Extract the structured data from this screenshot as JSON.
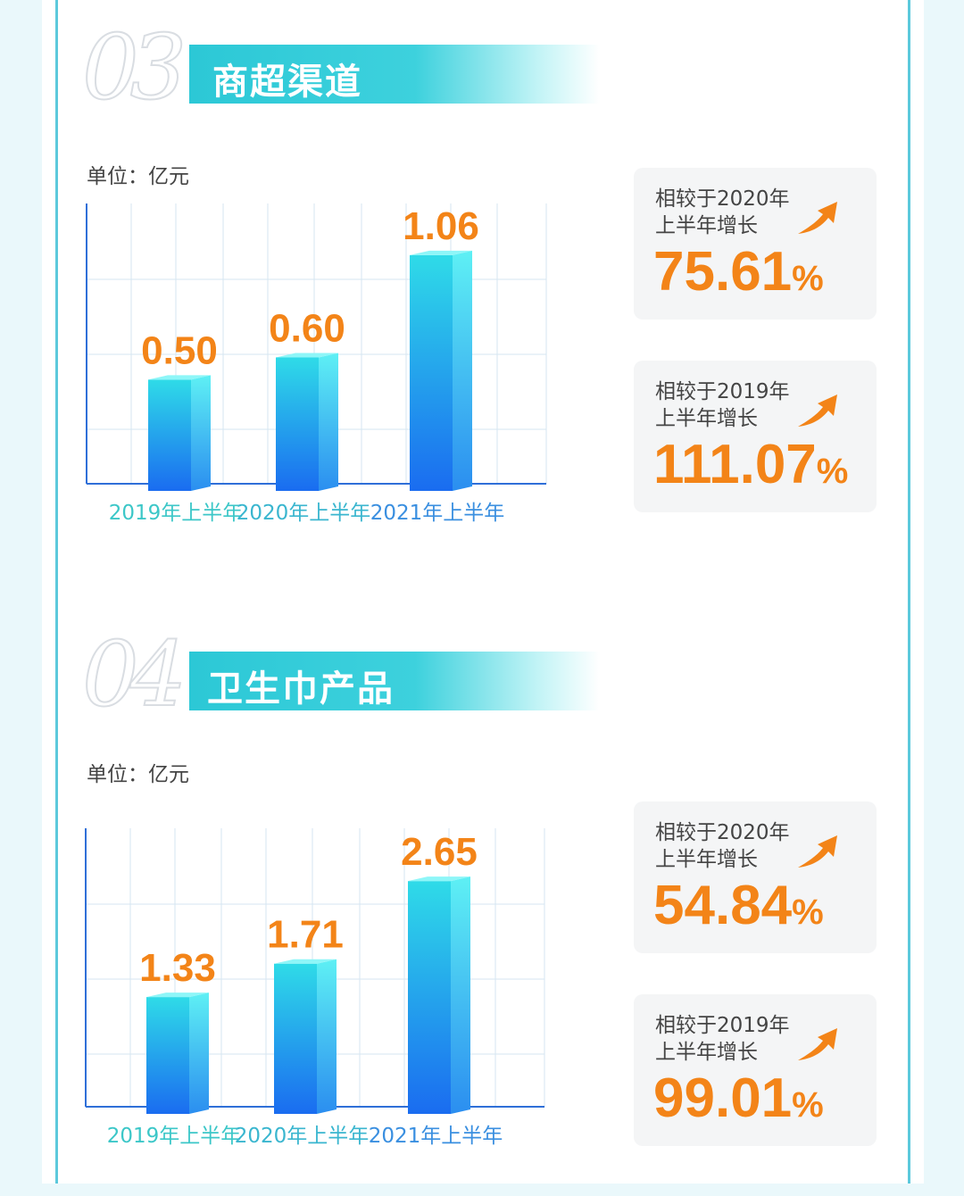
{
  "colors": {
    "accent": "#2cc8d6",
    "value": "#f38418",
    "bar_top": "#2fdbe8",
    "bar_bottom": "#1a6cf0"
  },
  "sections": [
    {
      "number": "03",
      "title": "商超渠道",
      "unit": "单位：亿元",
      "stats": [
        {
          "label": "相较于2020年上半年增长",
          "value": "75.61",
          "unit": "%"
        },
        {
          "label": "相较于2019年上半年增长",
          "value": "111.07",
          "unit": "%"
        }
      ]
    },
    {
      "number": "04",
      "title": "卫生巾产品",
      "unit": "单位：亿元",
      "stats": [
        {
          "label": "相较于2020年上半年增长",
          "value": "54.84",
          "unit": "%"
        },
        {
          "label": "相较于2019年上半年增长",
          "value": "99.01",
          "unit": "%"
        }
      ]
    }
  ],
  "chart_data": [
    {
      "type": "bar",
      "categories": [
        "2019年上半年",
        "2020年上半年",
        "2021年上半年"
      ],
      "values": [
        0.5,
        0.6,
        1.06
      ],
      "value_labels": [
        "0.50",
        "0.60",
        "1.06"
      ],
      "grid": true
    },
    {
      "type": "bar",
      "categories": [
        "2019年上半年",
        "2020年上半年",
        "2021年上半年"
      ],
      "values": [
        1.33,
        1.71,
        2.65
      ],
      "value_labels": [
        "1.33",
        "1.71",
        "2.65"
      ],
      "grid": true
    }
  ]
}
